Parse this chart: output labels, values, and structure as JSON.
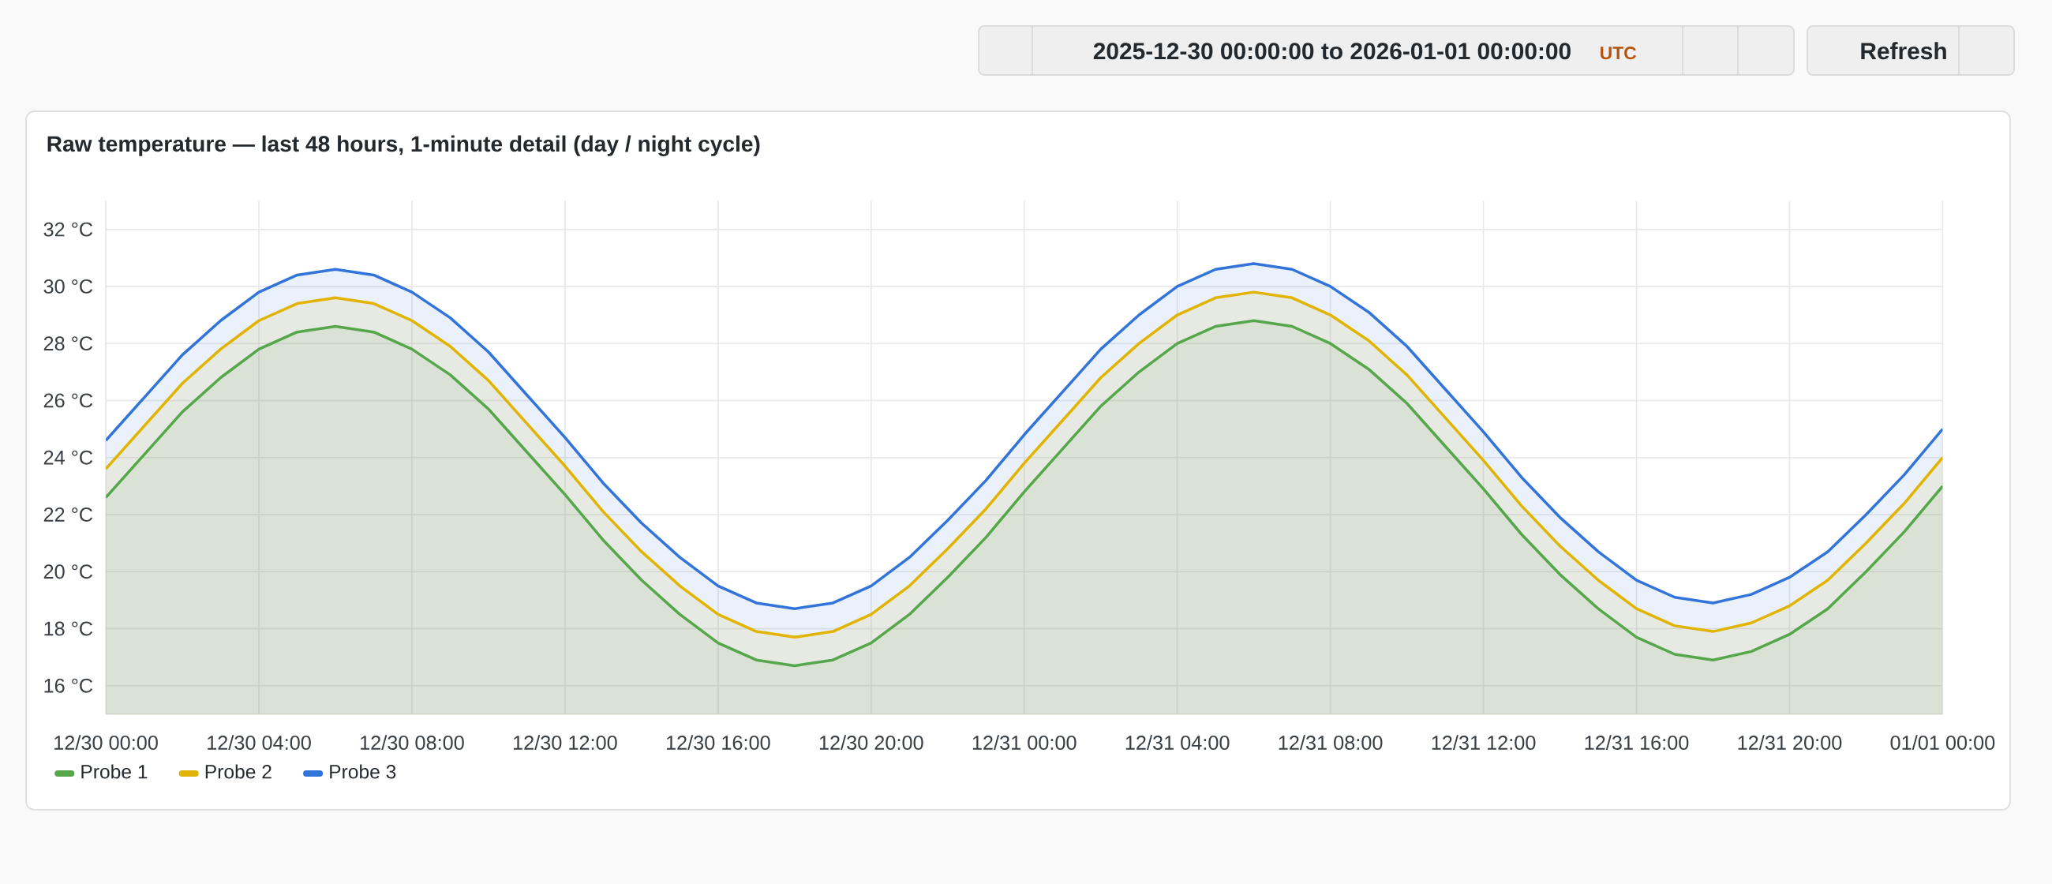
{
  "chart_data": {
    "type": "area",
    "title": "Raw temperature — last 48 hours, 1-minute detail (day / night cycle)",
    "annotations": [
      "2025-12-30 00:00:00 to 2026-01-01 00:00:00",
      "UTC",
      "Refresh"
    ],
    "x": [
      "2025-12-30T00:00",
      "2025-12-30T01:00",
      "2025-12-30T02:00",
      "2025-12-30T03:00",
      "2025-12-30T04:00",
      "2025-12-30T05:00",
      "2025-12-30T06:00",
      "2025-12-30T07:00",
      "2025-12-30T08:00",
      "2025-12-30T09:00",
      "2025-12-30T10:00",
      "2025-12-30T11:00",
      "2025-12-30T12:00",
      "2025-12-30T13:00",
      "2025-12-30T14:00",
      "2025-12-30T15:00",
      "2025-12-30T16:00",
      "2025-12-30T17:00",
      "2025-12-30T18:00",
      "2025-12-30T19:00",
      "2025-12-30T20:00",
      "2025-12-30T21:00",
      "2025-12-30T22:00",
      "2025-12-30T23:00",
      "2025-12-31T00:00",
      "2025-12-31T01:00",
      "2025-12-31T02:00",
      "2025-12-31T03:00",
      "2025-12-31T04:00",
      "2025-12-31T05:00",
      "2025-12-31T06:00",
      "2025-12-31T07:00",
      "2025-12-31T08:00",
      "2025-12-31T09:00",
      "2025-12-31T10:00",
      "2025-12-31T11:00",
      "2025-12-31T12:00",
      "2025-12-31T13:00",
      "2025-12-31T14:00",
      "2025-12-31T15:00",
      "2025-12-31T16:00",
      "2025-12-31T17:00",
      "2025-12-31T18:00",
      "2025-12-31T19:00",
      "2025-12-31T20:00",
      "2025-12-31T21:00",
      "2025-12-31T22:00",
      "2025-12-31T23:00",
      "2026-01-01T00:00"
    ],
    "series": [
      {
        "name": "Probe 1",
        "color": "#56a64b",
        "values": [
          22.6,
          24.1,
          25.6,
          26.8,
          27.8,
          28.4,
          28.6,
          28.4,
          27.8,
          26.9,
          25.7,
          24.2,
          22.7,
          21.1,
          19.7,
          18.5,
          17.5,
          16.9,
          16.7,
          16.9,
          17.5,
          18.5,
          19.8,
          21.2,
          22.8,
          24.3,
          25.8,
          27.0,
          28.0,
          28.6,
          28.8,
          28.6,
          28.0,
          27.1,
          25.9,
          24.4,
          22.9,
          21.3,
          19.9,
          18.7,
          17.7,
          17.1,
          16.9,
          17.2,
          17.8,
          18.7,
          20.0,
          21.4,
          23.0
        ]
      },
      {
        "name": "Probe 2",
        "color": "#e0b400",
        "values": [
          23.6,
          25.1,
          26.6,
          27.8,
          28.8,
          29.4,
          29.6,
          29.4,
          28.8,
          27.9,
          26.7,
          25.2,
          23.7,
          22.1,
          20.7,
          19.5,
          18.5,
          17.9,
          17.7,
          17.9,
          18.5,
          19.5,
          20.8,
          22.2,
          23.8,
          25.3,
          26.8,
          28.0,
          29.0,
          29.6,
          29.8,
          29.6,
          29.0,
          28.1,
          26.9,
          25.4,
          23.9,
          22.3,
          20.9,
          19.7,
          18.7,
          18.1,
          17.9,
          18.2,
          18.8,
          19.7,
          21.0,
          22.4,
          24.0
        ]
      },
      {
        "name": "Probe 3",
        "color": "#3274d9",
        "values": [
          24.6,
          26.1,
          27.6,
          28.8,
          29.8,
          30.4,
          30.6,
          30.4,
          29.8,
          28.9,
          27.7,
          26.2,
          24.7,
          23.1,
          21.7,
          20.5,
          19.5,
          18.9,
          18.7,
          18.9,
          19.5,
          20.5,
          21.8,
          23.2,
          24.8,
          26.3,
          27.8,
          29.0,
          30.0,
          30.6,
          30.8,
          30.6,
          30.0,
          29.1,
          27.9,
          26.4,
          24.9,
          23.3,
          21.9,
          20.7,
          19.7,
          19.1,
          18.9,
          19.2,
          19.8,
          20.7,
          22.0,
          23.4,
          25.0
        ]
      }
    ],
    "xlim": [
      "2025-12-30T00:00",
      "2026-01-01T00:00"
    ],
    "xticks": [
      {
        "value": "2025-12-30T00:00",
        "label": "12/30 00:00"
      },
      {
        "value": "2025-12-30T04:00",
        "label": "12/30 04:00"
      },
      {
        "value": "2025-12-30T08:00",
        "label": "12/30 08:00"
      },
      {
        "value": "2025-12-30T12:00",
        "label": "12/30 12:00"
      },
      {
        "value": "2025-12-30T16:00",
        "label": "12/30 16:00"
      },
      {
        "value": "2025-12-30T20:00",
        "label": "12/30 20:00"
      },
      {
        "value": "2025-12-31T00:00",
        "label": "12/31 00:00"
      },
      {
        "value": "2025-12-31T04:00",
        "label": "12/31 04:00"
      },
      {
        "value": "2025-12-31T08:00",
        "label": "12/31 08:00"
      },
      {
        "value": "2025-12-31T12:00",
        "label": "12/31 12:00"
      },
      {
        "value": "2025-12-31T16:00",
        "label": "12/31 16:00"
      },
      {
        "value": "2025-12-31T20:00",
        "label": "12/31 20:00"
      },
      {
        "value": "2026-01-01T00:00",
        "label": "01/01 00:00"
      }
    ],
    "ylim": [
      15,
      33
    ],
    "yticks": [
      {
        "value": 16,
        "label": "16 °C"
      },
      {
        "value": 18,
        "label": "18 °C"
      },
      {
        "value": 20,
        "label": "20 °C"
      },
      {
        "value": 22,
        "label": "22 °C"
      },
      {
        "value": 24,
        "label": "24 °C"
      },
      {
        "value": 26,
        "label": "26 °C"
      },
      {
        "value": 28,
        "label": "28 °C"
      },
      {
        "value": 30,
        "label": "30 °C"
      },
      {
        "value": 32,
        "label": "32 °C"
      }
    ],
    "grid": true,
    "legend": "bottom left",
    "marker": "none",
    "line_style": "solid"
  }
}
